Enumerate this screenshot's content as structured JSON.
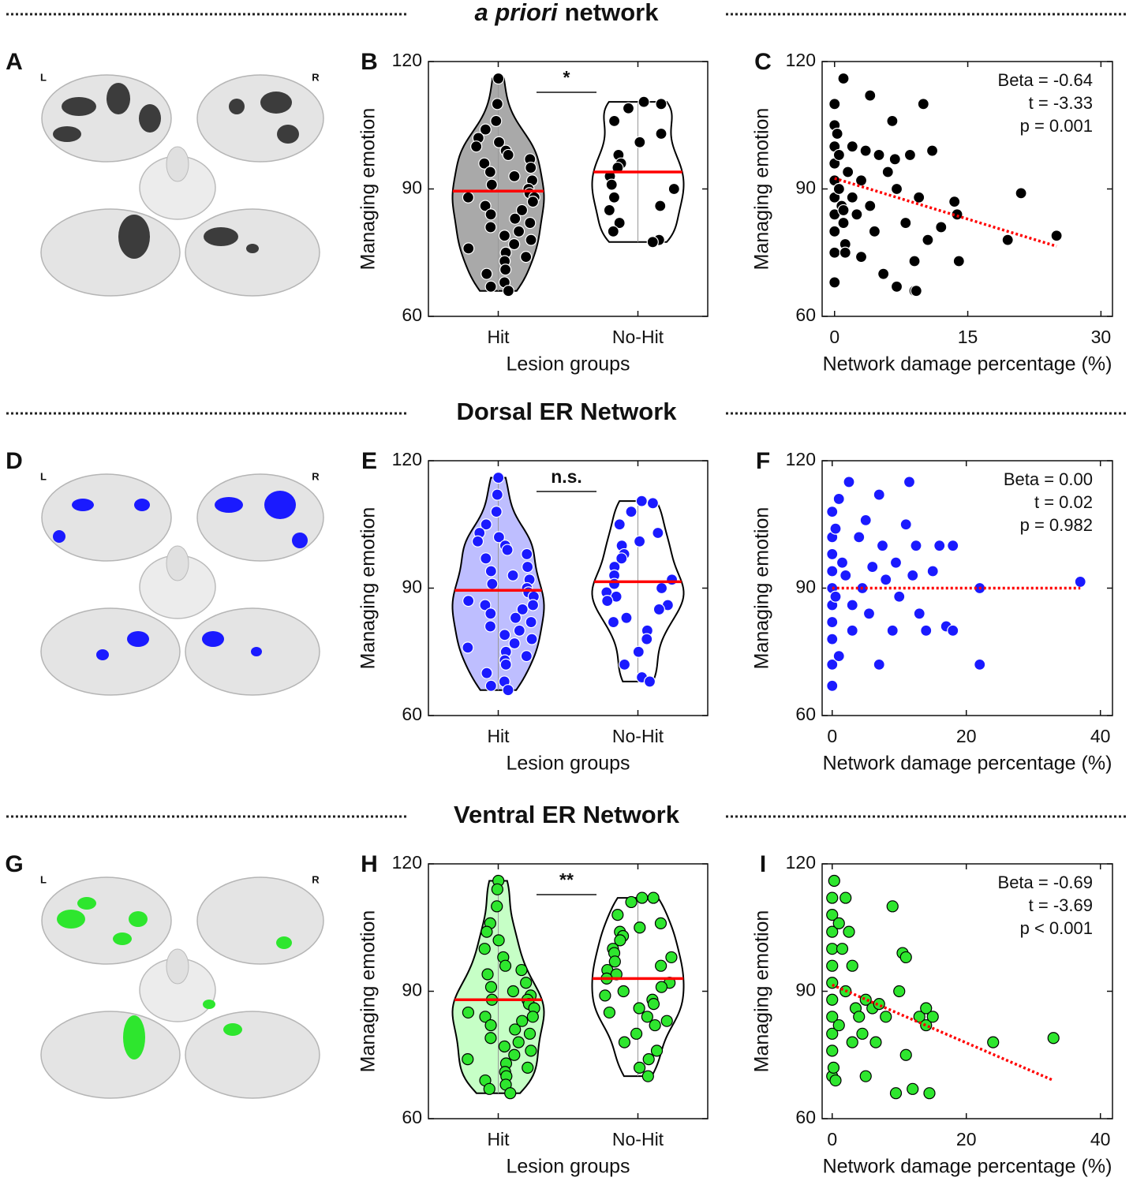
{
  "sections": [
    {
      "title": [
        {
          "text": "a priori",
          "style": "italic"
        },
        {
          "text": "network"
        }
      ]
    },
    {
      "title": [
        {
          "text": "Dorsal ER Network"
        }
      ]
    },
    {
      "title": [
        {
          "text": "Ventral ER Network"
        }
      ]
    }
  ],
  "brain_panels": [
    {
      "panel": "A",
      "left": "L",
      "right": "R",
      "color": "#3c3c3c"
    },
    {
      "panel": "D",
      "left": "L",
      "right": "R",
      "color": "#1a1aff"
    },
    {
      "panel": "G",
      "left": "L",
      "right": "R",
      "color": "#2ee62e"
    }
  ],
  "chart_data": [
    {
      "type": "violin",
      "panel": "B",
      "categories": [
        "Hit",
        "No-Hit"
      ],
      "values": [
        [
          116,
          110,
          106,
          104,
          102,
          101,
          100,
          99,
          98,
          97,
          96,
          95,
          94,
          93,
          92,
          91,
          90,
          89,
          88,
          88,
          87,
          86,
          85,
          84,
          83,
          82,
          81,
          80,
          79,
          78,
          77,
          76,
          75,
          74,
          73,
          71,
          70,
          68,
          67,
          66
        ],
        [
          110.5,
          110,
          109,
          106,
          103,
          101,
          98,
          96,
          95,
          93,
          91,
          90,
          88,
          86,
          85,
          82,
          80,
          78,
          77.5
        ]
      ],
      "means": [
        89.5,
        94
      ],
      "fills": [
        "#8c8c8c",
        "#ffffff"
      ],
      "color": "#000000",
      "edgecolor": "#ffffff",
      "mean_color": "#ff0000",
      "ylim": [
        60,
        120
      ],
      "yticks": [
        60,
        90,
        120
      ],
      "ylabel": "Managing emotion",
      "xlabel": "Lesion groups",
      "annotation": "*"
    },
    {
      "type": "scatter",
      "panel": "C",
      "x": [
        0,
        0,
        0,
        0,
        0,
        0,
        0,
        0,
        0,
        0,
        0.3,
        0.5,
        0.5,
        0.8,
        1,
        1,
        1.2,
        1.5,
        2,
        2,
        2.5,
        3,
        3,
        3.5,
        4,
        4,
        4.5,
        5,
        5.5,
        6,
        6.5,
        7,
        7,
        8,
        8.5,
        9,
        9,
        9.5,
        10,
        10.5,
        11,
        12,
        13.5,
        13.8,
        14,
        19.5,
        21,
        25,
        1,
        1.2,
        6.8,
        9.2
      ],
      "values": [
        110,
        105,
        100,
        96,
        92,
        88,
        84,
        80,
        75,
        68,
        103,
        98,
        90,
        86,
        116,
        82,
        77,
        94,
        100,
        88,
        84,
        92,
        74,
        99,
        112,
        86,
        80,
        98,
        70,
        94,
        106,
        90,
        67,
        82,
        98,
        73,
        66,
        88,
        110,
        78,
        99,
        81,
        87,
        84,
        73,
        78,
        89,
        79,
        85,
        75,
        97,
        66
      ],
      "color": "#000000",
      "edgecolor": "#ffffff",
      "xlim": [
        -1.4,
        31.3
      ],
      "xticks": [
        0,
        15,
        30
      ],
      "ylim": [
        60,
        120
      ],
      "yticks": [
        60,
        90,
        120
      ],
      "ylabel": "Managing emotion",
      "xlabel": "Network damage percentage (%)",
      "fit": {
        "x": [
          0,
          25
        ],
        "values": [
          92.5,
          76.5
        ],
        "color": "#ff0000"
      },
      "stats": [
        "Beta = -0.64",
        "t = -3.33",
        "p =  0.001"
      ]
    },
    {
      "type": "violin",
      "panel": "E",
      "categories": [
        "Hit",
        "No-Hit"
      ],
      "values": [
        [
          116,
          112,
          108,
          105,
          103,
          102,
          101,
          100,
          99,
          98,
          97,
          95,
          94,
          93,
          92,
          91,
          90,
          89,
          88,
          87,
          86,
          86,
          85,
          84,
          83,
          82,
          81,
          80,
          79,
          78,
          77,
          76,
          75,
          74,
          73,
          72,
          70,
          68,
          67,
          66
        ],
        [
          110.5,
          110,
          108,
          105,
          103,
          101,
          100,
          98,
          97,
          95,
          93,
          92,
          91,
          90,
          89,
          88,
          87,
          86,
          85,
          83,
          82,
          80,
          78,
          75,
          72,
          69,
          68
        ]
      ],
      "means": [
        89.5,
        91.5
      ],
      "fills": [
        "#a8a8ff",
        "#ffffff"
      ],
      "color": "#1a1aff",
      "edgecolor": "#ffffff",
      "mean_color": "#ff0000",
      "ylim": [
        60,
        120
      ],
      "yticks": [
        60,
        90,
        120
      ],
      "ylabel": "Managing emotion",
      "xlabel": "Lesion groups",
      "annotation": "n.s."
    },
    {
      "type": "scatter",
      "panel": "F",
      "x": [
        0,
        0,
        0,
        0,
        0,
        0,
        0,
        0,
        0,
        0,
        0.5,
        0.5,
        1,
        1,
        1.5,
        2,
        2.5,
        3,
        3,
        4,
        4.5,
        5,
        5.5,
        6,
        7,
        7,
        7.5,
        8,
        9,
        9.5,
        10,
        11,
        11.5,
        12,
        12.5,
        13,
        14,
        15,
        16,
        17,
        18,
        18,
        22,
        22,
        37
      ],
      "values": [
        108,
        102,
        98,
        94,
        90,
        86,
        82,
        78,
        72,
        67,
        104,
        88,
        111,
        74,
        96,
        93,
        115,
        86,
        80,
        102,
        90,
        106,
        84,
        95,
        112,
        72,
        100,
        92,
        80,
        96,
        88,
        105,
        115,
        93,
        100,
        84,
        80,
        94,
        100,
        81,
        100,
        80,
        90,
        72,
        91.5
      ],
      "color": "#1a1aff",
      "edgecolor": "#ffffff",
      "xlim": [
        -1.5,
        41.8
      ],
      "xticks": [
        0,
        20,
        40
      ],
      "ylim": [
        60,
        120
      ],
      "yticks": [
        60,
        90,
        120
      ],
      "ylabel": "Managing emotion",
      "xlabel": "Network damage percentage (%)",
      "fit": {
        "x": [
          0,
          37
        ],
        "values": [
          90,
          90
        ],
        "color": "#ff0000"
      },
      "stats": [
        "Beta = 0.00",
        "t = 0.02",
        "p = 0.982"
      ]
    },
    {
      "type": "violin",
      "panel": "H",
      "categories": [
        "Hit",
        "No-Hit"
      ],
      "values": [
        [
          116,
          114,
          110,
          106,
          104,
          102,
          100,
          98,
          96,
          95,
          94,
          92,
          91,
          90,
          89,
          88,
          88,
          87,
          86,
          85,
          84,
          84,
          83,
          82,
          81,
          80,
          79,
          78,
          77,
          76,
          75,
          74,
          73,
          72,
          71,
          70,
          69,
          68,
          67,
          66
        ],
        [
          112,
          112,
          111,
          108,
          106,
          105,
          104,
          103,
          102,
          100,
          99,
          98,
          97,
          96,
          95,
          94,
          93,
          92,
          91,
          90,
          89,
          88,
          87,
          86,
          85,
          84,
          83,
          82,
          80,
          78,
          76,
          74,
          72,
          70
        ]
      ],
      "means": [
        88,
        93
      ],
      "fills": [
        "#b3ffb3",
        "#ffffff"
      ],
      "color": "#2ee62e",
      "edgecolor": "#000000",
      "mean_color": "#ff0000",
      "ylim": [
        60,
        120
      ],
      "yticks": [
        60,
        90,
        120
      ],
      "ylabel": "Managing emotion",
      "xlabel": "Lesion groups",
      "annotation": "**"
    },
    {
      "type": "scatter",
      "panel": "I",
      "x": [
        0,
        0,
        0,
        0,
        0,
        0,
        0,
        0,
        0,
        0,
        0,
        0.3,
        0.5,
        1,
        1,
        1.5,
        2,
        2,
        2.5,
        3,
        3,
        3.5,
        4,
        4.5,
        5,
        5,
        6,
        6.5,
        7,
        8,
        9,
        9.5,
        10,
        10.5,
        11,
        11,
        12,
        13,
        14,
        14,
        14.5,
        15,
        24,
        33,
        0.2
      ],
      "values": [
        112,
        108,
        104,
        100,
        96,
        92,
        88,
        84,
        80,
        76,
        70,
        116,
        69,
        106,
        82,
        100,
        112,
        90,
        104,
        96,
        78,
        86,
        84,
        80,
        88,
        70,
        86,
        78,
        87,
        84,
        110,
        66,
        90,
        99,
        98,
        75,
        67,
        84,
        86,
        82,
        66,
        84,
        78,
        79,
        72
      ],
      "color": "#2ee62e",
      "edgecolor": "#000000",
      "xlim": [
        -1.5,
        41.8
      ],
      "xticks": [
        0,
        20,
        40
      ],
      "ylim": [
        60,
        120
      ],
      "yticks": [
        60,
        90,
        120
      ],
      "ylabel": "Managing emotion",
      "xlabel": "Network damage percentage (%)",
      "fit": {
        "x": [
          0,
          33
        ],
        "values": [
          91.5,
          69
        ],
        "color": "#ff0000"
      },
      "stats": [
        "Beta = -0.69",
        "t = -3.69",
        "p <  0.001"
      ]
    }
  ]
}
